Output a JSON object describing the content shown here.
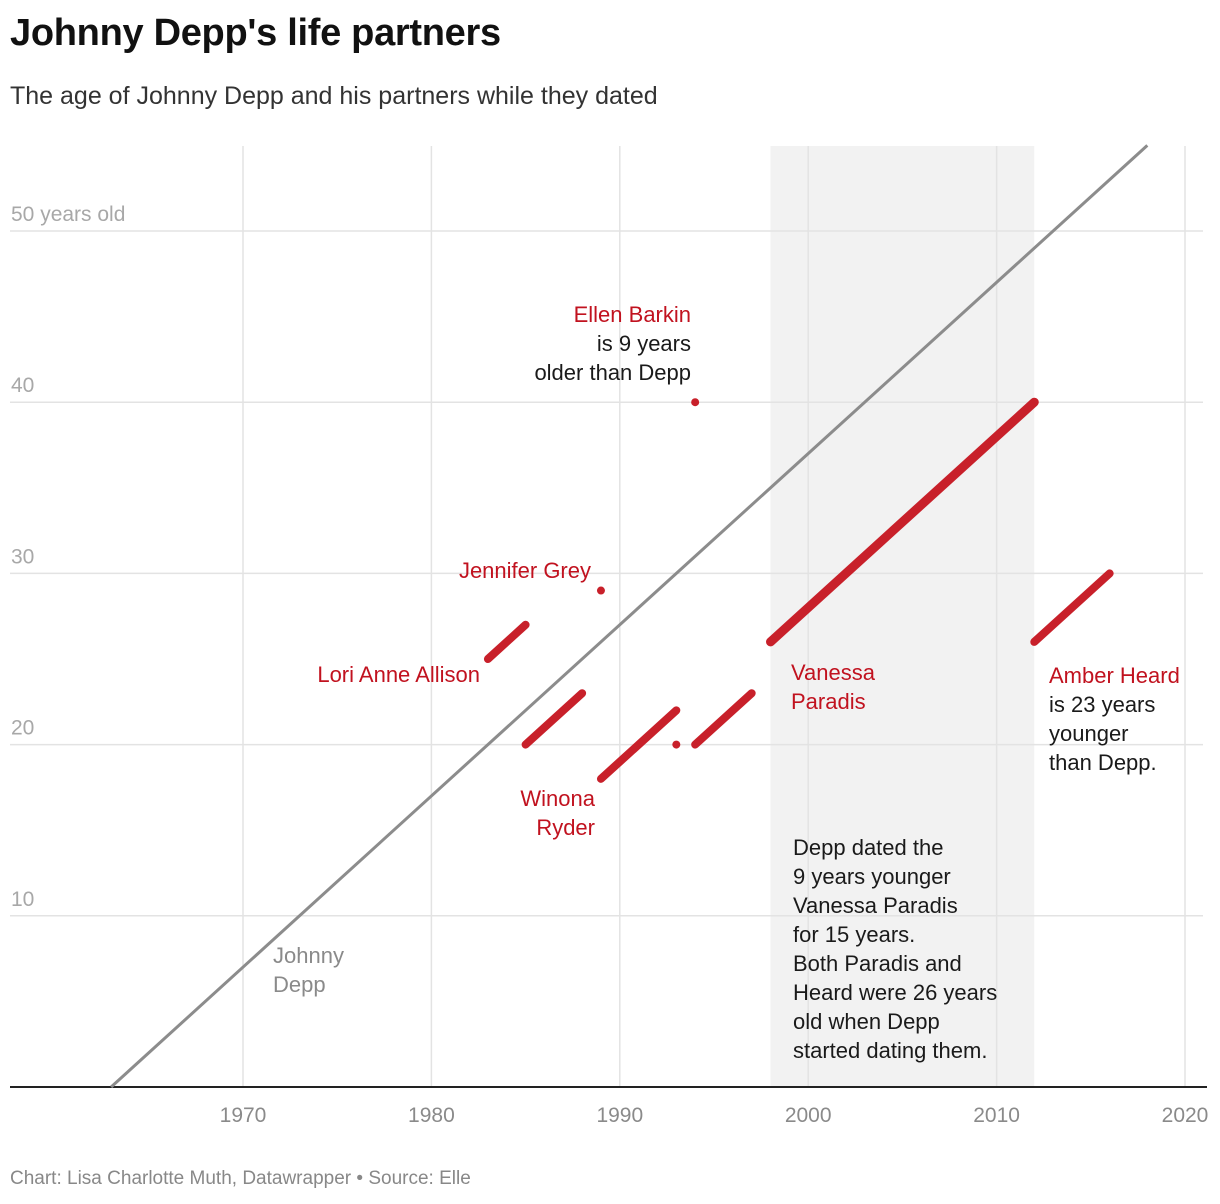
{
  "title": "Johnny Depp's life partners",
  "subtitle": "The age of Johnny Depp and his partners while they dated",
  "footer": {
    "credit": "Chart: Lisa Charlotte Muth, Datawrapper",
    "separator": " • ",
    "source": "Source: Elle"
  },
  "chart_data": {
    "type": "line",
    "xlabel": "",
    "ylabel": "",
    "xlim": [
      1960,
      2021
    ],
    "ylim": [
      0,
      55
    ],
    "x_ticks": [
      1970,
      1980,
      1990,
      2000,
      2010,
      2020
    ],
    "x_tick_labels": [
      "1970",
      "1980",
      "1990",
      "2000",
      "2010",
      "2020"
    ],
    "y_ticks": [
      10,
      20,
      30,
      40,
      50
    ],
    "y_tick_labels": [
      "10",
      "20",
      "30",
      "40",
      "50 years old"
    ],
    "grid": true,
    "highlight_band": {
      "x": [
        1998,
        2012
      ],
      "color": "#f2f2f2"
    },
    "reference_line": {
      "name": "Johnny Depp",
      "x": [
        1963,
        2018
      ],
      "y": [
        0,
        55
      ],
      "color": "#8c8c8c"
    },
    "series": [
      {
        "name": "Lori Anne Allison",
        "x": [
          1983,
          1985
        ],
        "y": [
          25,
          27
        ]
      },
      {
        "name": "Jennifer Grey",
        "x": [
          1989,
          1989
        ],
        "y": [
          29,
          29
        ]
      },
      {
        "name": "Winona Ryder",
        "x": [
          1985,
          1988
        ],
        "y": [
          20,
          23
        ]
      },
      {
        "name": "",
        "x": [
          1989,
          1993
        ],
        "y": [
          18,
          22
        ]
      },
      {
        "name": "",
        "x": [
          1993,
          1993
        ],
        "y": [
          20,
          20
        ]
      },
      {
        "name": "",
        "x": [
          1994,
          1997
        ],
        "y": [
          20,
          23
        ]
      },
      {
        "name": "Ellen Barkin",
        "x": [
          1994,
          1994
        ],
        "y": [
          40,
          40
        ]
      },
      {
        "name": "Vanessa Paradis",
        "x": [
          1998,
          2012
        ],
        "y": [
          26,
          40
        ]
      },
      {
        "name": "Amber Heard",
        "x": [
          2012,
          2016
        ],
        "y": [
          26,
          30
        ]
      }
    ],
    "colors": {
      "partner": "#c8202a",
      "depp": "#8c8c8c",
      "band": "#f2f2f2",
      "grid": "#e3e3e3",
      "axis": "#222222",
      "label_red": "#c1121f"
    }
  },
  "annotations": {
    "ellen": {
      "name": "Ellen Barkin",
      "line1": "is 9 years",
      "line2": "older than Depp"
    },
    "jennifer": {
      "name": "Jennifer Grey"
    },
    "lori": {
      "name": "Lori Anne Allison"
    },
    "winona": {
      "line1": "Winona",
      "line2": "Ryder"
    },
    "vanessa": {
      "line1": "Vanessa",
      "line2": "Paradis"
    },
    "amber": {
      "name": "Amber Heard",
      "line1": "is 23 years",
      "line2": "younger",
      "line3": "than Depp."
    },
    "depp": {
      "line1": "Johnny",
      "line2": "Depp"
    },
    "band_note": {
      "line1": "Depp dated the",
      "line2": "9 years younger",
      "line3": "Vanessa Paradis",
      "line4": "for 15 years.",
      "line5": "Both Paradis and",
      "line6": "Heard were 26 years",
      "line7": "old when Depp",
      "line8": "started dating them."
    }
  }
}
